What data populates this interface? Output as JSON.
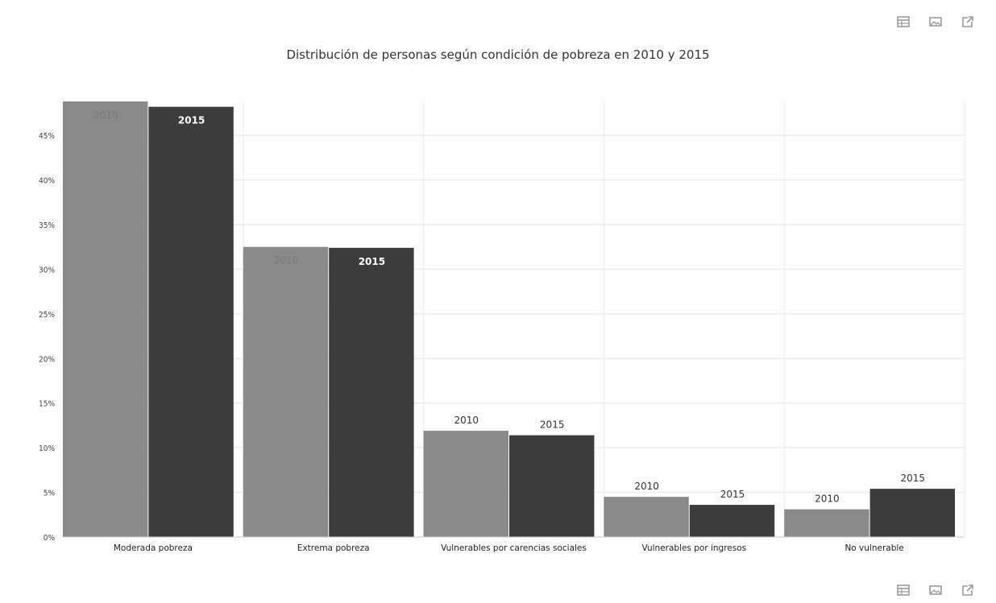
{
  "toolbar": {
    "icons": [
      "table-icon",
      "image-icon",
      "external-link-icon"
    ],
    "colors": {
      "icon": "#9a9a9a"
    }
  },
  "chart_data": {
    "type": "bar",
    "title": "Distribución de personas según condición de pobreza en 2010 y 2015",
    "xlabel": "",
    "ylabel": "",
    "categories": [
      "Moderada pobreza",
      "Extrema pobreza",
      "Vulnerables por carencias sociales",
      "Vulnerables por ingresos",
      "No vulnerable"
    ],
    "series": [
      {
        "name": "2010",
        "color": "#8a8a8a",
        "values": [
          48.8,
          32.5,
          11.9,
          4.5,
          3.1
        ]
      },
      {
        "name": "2015",
        "color": "#3c3c3c",
        "values": [
          48.2,
          32.4,
          11.4,
          3.6,
          5.4
        ]
      }
    ],
    "ylim": [
      0,
      48.8
    ],
    "yticks": [
      0,
      5,
      10,
      15,
      20,
      25,
      30,
      35,
      40,
      45
    ],
    "ytick_labels": [
      "0%",
      "5%",
      "10%",
      "15%",
      "20%",
      "25%",
      "30%",
      "35%",
      "40%",
      "45%"
    ],
    "grid": true,
    "legend": "none",
    "data_labels": [
      [
        "2010",
        "2015"
      ],
      [
        "2010",
        "2015"
      ],
      [
        "2010",
        "2015"
      ],
      [
        "2010",
        "2015"
      ],
      [
        "2010",
        "2015"
      ]
    ]
  }
}
